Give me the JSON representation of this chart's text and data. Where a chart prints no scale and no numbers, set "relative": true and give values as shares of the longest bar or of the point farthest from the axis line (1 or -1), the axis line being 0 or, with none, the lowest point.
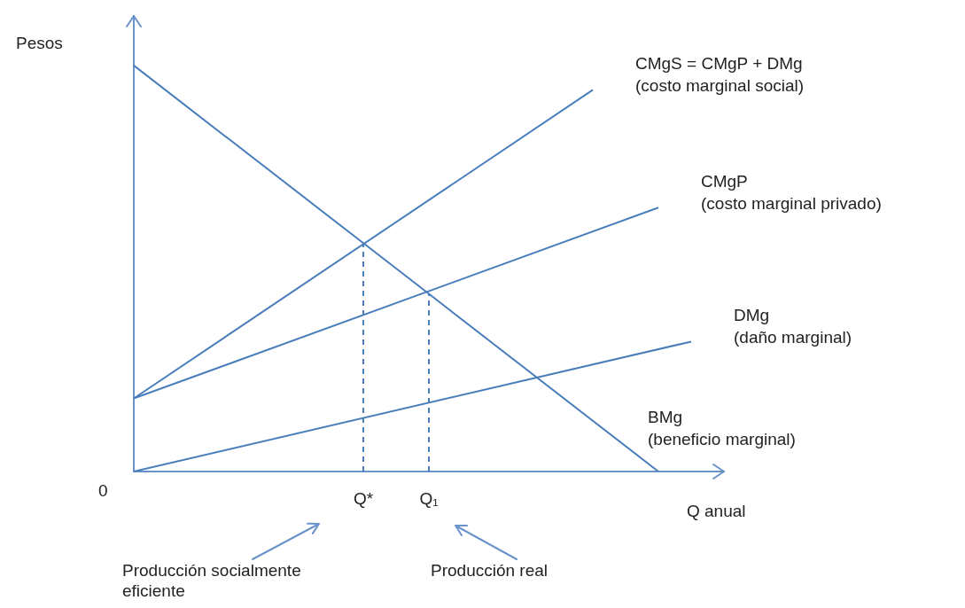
{
  "chart_data": {
    "type": "line",
    "relative": true,
    "ylabel": "Pesos",
    "xlabel": "Q anual",
    "categories": [
      null,
      null,
      null,
      null,
      null,
      null,
      null,
      "Q*",
      null,
      "Q₁",
      null,
      null,
      null,
      null,
      null,
      null,
      null,
      null,
      null
    ],
    "tick_labels": "x",
    "grid": false,
    "legend": false,
    "marker": "none",
    "line_style": "solid",
    "series": [
      {
        "name": "CMgS = CMgP + DMg\n(costo marginal social)",
        "color": "#4a7ebb",
        "values": [
          0.18,
          null,
          null,
          null,
          null,
          null,
          null,
          null,
          null,
          null,
          null,
          null,
          null,
          null,
          0.94,
          null,
          null,
          null,
          null
        ]
      },
      {
        "name": "CMgP\n(costo marginal privado)",
        "color": "#4a7ebb",
        "values": [
          0.18,
          null,
          null,
          null,
          null,
          null,
          null,
          null,
          null,
          null,
          null,
          null,
          null,
          null,
          null,
          null,
          0.65,
          null,
          null
        ]
      },
      {
        "name": "DMg\n(daño marginal)",
        "color": "#4a7ebb",
        "values": [
          0,
          null,
          null,
          null,
          null,
          null,
          null,
          null,
          null,
          null,
          null,
          null,
          null,
          null,
          null,
          null,
          null,
          0.32,
          null
        ]
      },
      {
        "name": "BMg\n(beneficio marginal)",
        "color": "#4a7ebb",
        "values": [
          1,
          null,
          null,
          null,
          null,
          null,
          null,
          0.5625,
          null,
          0.4375,
          null,
          null,
          null,
          null,
          null,
          null,
          0,
          null,
          null
        ]
      }
    ],
    "ref_lines": [
      {
        "axis": "x",
        "value": "Q*",
        "color": "#4a7ebb",
        "line_style": "dashed"
      },
      {
        "axis": "x",
        "value": "Q₁",
        "color": "#4a7ebb",
        "line_style": "dashed"
      }
    ],
    "annotations": [
      "0",
      "Producción socialmente eficiente",
      "Producción real"
    ]
  }
}
